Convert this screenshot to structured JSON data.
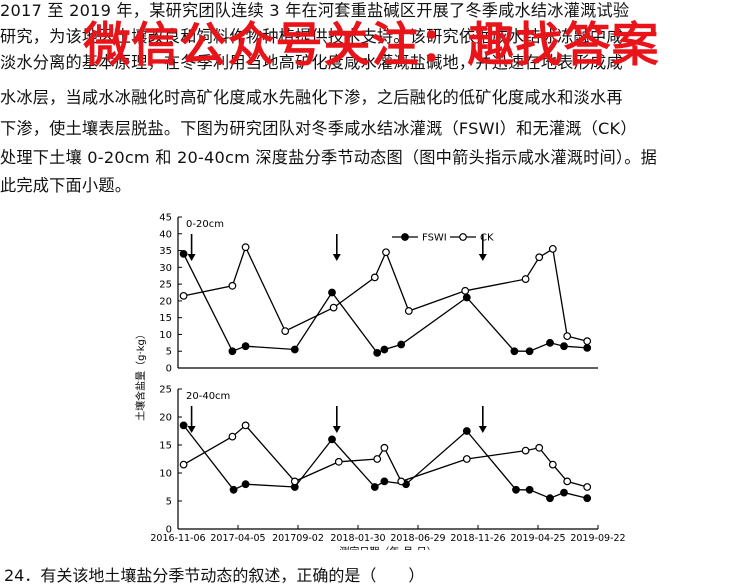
{
  "intro": {
    "lines": [
      "  2017 至 2019 年，某研究团队连续 3 年在河套重盐碱区开展了冬季咸水结冰灌溉试验",
      "研究，为该地区土壤改良和饲料作物种植提供技术支持。该研究依据咸水结冰冻融中咸",
      "淡水分离的基本原理，在冬季利用当地高矿化度咸水灌溉盐碱地，并迅速在地表形成咸",
      "水冰层，当咸水冰融化时高矿化度咸水先融化下渗，之后融化的低矿化度咸水和淡水再",
      "下渗，使土壤表层脱盐。下图为研究团队对冬季咸水结冰灌溉（FSWI）和无灌溉（CK）",
      "处理下土壤 0-20cm 和 20-40cm 深度盐分季节动态图（图中箭头指示咸水灌溉时间）。据",
      "此完成下面小题。"
    ]
  },
  "banner": {
    "text": "微信公众号关注：趣找答案"
  },
  "chart_data": {
    "type": "line",
    "ylabel": "土壤含盐量（g·kg）",
    "xlabel": "测定日期（年-月-日）",
    "x_ticks": [
      "2016-11-06",
      "2017-04-05",
      "201709-02",
      "2018-01-30",
      "2018-06-29",
      "2018-11-26",
      "2019-04-25",
      "2019-09-22"
    ],
    "x_tick_dates": [
      "2016-11-06",
      "2017-04-05",
      "2017-09-02",
      "2018-01-30",
      "2018-06-29",
      "2018-11-26",
      "2019-04-25",
      "2019-09-22"
    ],
    "legend": [
      "FSWI",
      "CK"
    ],
    "panels": [
      {
        "label": "0-20cm",
        "yticks": [
          0,
          5,
          10,
          15,
          20,
          25,
          30,
          35,
          40,
          45
        ],
        "ylim": [
          0,
          45
        ],
        "arrows": [
          "2016-12-10",
          "2017-12-08",
          "2018-12-08"
        ],
        "series": [
          {
            "name": "FSWI",
            "points": [
              [
                "2016-11-20",
                34
              ],
              [
                "2017-03-22",
                5
              ],
              [
                "2017-04-24",
                6.5
              ],
              [
                "2017-08-25",
                5.5
              ],
              [
                "2017-11-26",
                22.5
              ],
              [
                "2018-03-19",
                4.5
              ],
              [
                "2018-04-06",
                5.5
              ],
              [
                "2018-05-18",
                7
              ],
              [
                "2018-10-29",
                21
              ],
              [
                "2019-02-25",
                5
              ],
              [
                "2019-04-04",
                5
              ],
              [
                "2019-05-25",
                7.5
              ],
              [
                "2019-06-29",
                6.5
              ],
              [
                "2019-08-26",
                6
              ]
            ]
          },
          {
            "name": "CK",
            "points": [
              [
                "2016-11-20",
                21.5
              ],
              [
                "2017-03-22",
                24.5
              ],
              [
                "2017-04-24",
                36
              ],
              [
                "2017-08-01",
                11
              ],
              [
                "2017-11-30",
                18
              ],
              [
                "2018-03-13",
                27
              ],
              [
                "2018-04-10",
                34.5
              ],
              [
                "2018-06-06",
                17
              ],
              [
                "2018-10-25",
                23
              ],
              [
                "2019-03-25",
                26.5
              ],
              [
                "2019-04-28",
                33
              ],
              [
                "2019-06-01",
                35.5
              ],
              [
                "2019-07-07",
                9.5
              ],
              [
                "2019-08-26",
                8
              ]
            ]
          }
        ]
      },
      {
        "label": "20-40cm",
        "yticks": [
          0,
          5,
          10,
          15,
          20,
          25
        ],
        "ylim": [
          0,
          25
        ],
        "arrows": [
          "2016-12-10",
          "2017-12-08",
          "2018-12-08"
        ],
        "series": [
          {
            "name": "FSWI",
            "points": [
              [
                "2016-11-20",
                18.5
              ],
              [
                "2017-03-25",
                7
              ],
              [
                "2017-04-24",
                8
              ],
              [
                "2017-08-25",
                7.5
              ],
              [
                "2017-11-26",
                16
              ],
              [
                "2018-03-13",
                7.5
              ],
              [
                "2018-04-06",
                8.5
              ],
              [
                "2018-05-30",
                8
              ],
              [
                "2018-10-29",
                17.5
              ],
              [
                "2019-03-01",
                7
              ],
              [
                "2019-04-04",
                7
              ],
              [
                "2019-05-25",
                5.5
              ],
              [
                "2019-06-29",
                6.5
              ],
              [
                "2019-08-26",
                5.5
              ]
            ]
          },
          {
            "name": "CK",
            "points": [
              [
                "2016-11-20",
                11.5
              ],
              [
                "2017-03-22",
                16.5
              ],
              [
                "2017-04-24",
                18.5
              ],
              [
                "2017-08-25",
                8.5
              ],
              [
                "2017-12-13",
                12
              ],
              [
                "2018-03-19",
                12.5
              ],
              [
                "2018-04-06",
                14.5
              ],
              [
                "2018-05-18",
                8.5
              ],
              [
                "2018-10-29",
                12.5
              ],
              [
                "2019-03-25",
                14
              ],
              [
                "2019-04-28",
                14.5
              ],
              [
                "2019-06-01",
                11.5
              ],
              [
                "2019-07-07",
                8.5
              ],
              [
                "2019-08-26",
                7.5
              ]
            ]
          }
        ]
      }
    ]
  },
  "question": {
    "text": "24．有关该地土壤盐分季节动态的叙述，正确的是（　　）"
  }
}
